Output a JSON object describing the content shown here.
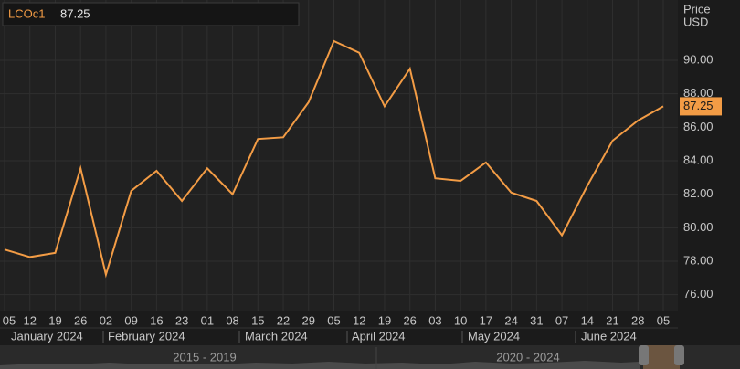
{
  "chart_data": {
    "type": "line",
    "y_label_1": "Price",
    "y_label_2": "USD",
    "categories": [
      "05",
      "12",
      "19",
      "26",
      "02",
      "09",
      "16",
      "23",
      "01",
      "08",
      "15",
      "22",
      "29",
      "05",
      "12",
      "19",
      "26",
      "03",
      "10",
      "17",
      "24",
      "31",
      "07",
      "14",
      "21",
      "28",
      "05"
    ],
    "months": [
      "January 2024",
      "February 2024",
      "March 2024",
      "April 2024",
      "May 2024",
      "June 2024"
    ],
    "series": [
      {
        "name": "LCOc1",
        "color": "#f39c45",
        "values": [
          78.7,
          78.25,
          78.5,
          83.55,
          77.2,
          82.2,
          83.4,
          81.6,
          83.55,
          82.0,
          85.3,
          85.4,
          87.5,
          91.15,
          90.45,
          87.25,
          89.5,
          82.95,
          82.8,
          83.9,
          82.1,
          81.6,
          79.55,
          82.5,
          85.2,
          86.4,
          87.25
        ]
      }
    ],
    "ylim": [
      75,
      93.6
    ],
    "yticks": [
      {
        "value": 76,
        "label": "76.00"
      },
      {
        "value": 78,
        "label": "78.00"
      },
      {
        "value": 80,
        "label": "80.00"
      },
      {
        "value": 82,
        "label": "82.00"
      },
      {
        "value": 84,
        "label": "84.00"
      },
      {
        "value": 86,
        "label": "86.00"
      },
      {
        "value": 88,
        "label": "88.00"
      },
      {
        "value": 90,
        "label": "90.00"
      }
    ],
    "navigator": [
      "2015 - 2019",
      "2020 - 2024"
    ],
    "grid": true
  }
}
